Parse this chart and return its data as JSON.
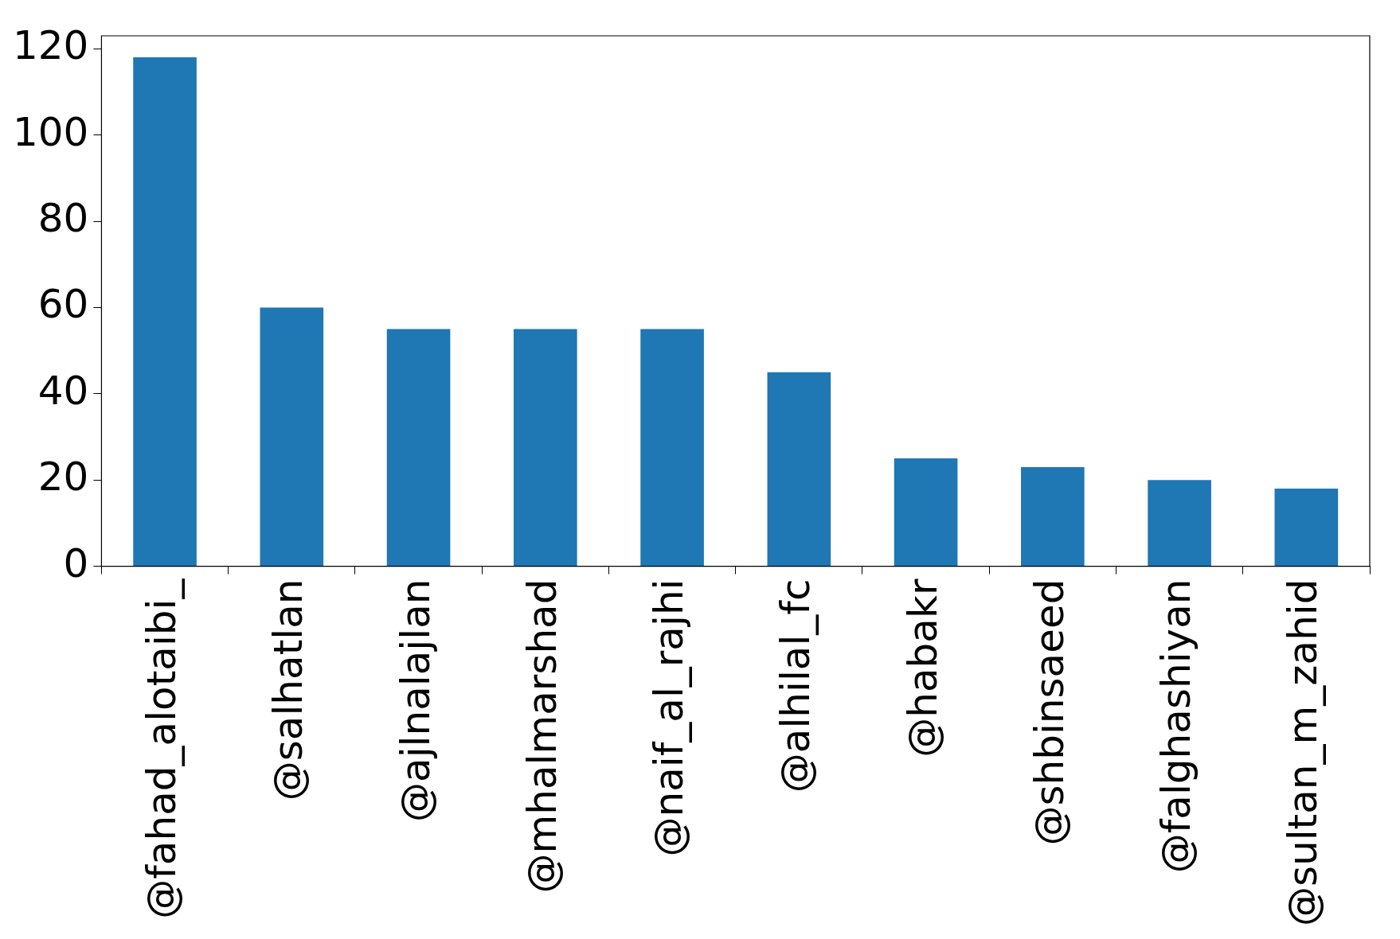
{
  "chart_data": {
    "type": "bar",
    "categories": [
      "@fahad_alotaibi_",
      "@salhatlan",
      "@ajlnalajlan",
      "@mhalmarshad",
      "@naif_al_rajhi",
      "@alhilal_fc",
      "@habakr",
      "@shbinsaeed",
      "@falghashiyan",
      "@sultan_m_zahid"
    ],
    "values": [
      118,
      60,
      55,
      55,
      55,
      45,
      25,
      23,
      20,
      18
    ],
    "color": "#1f77b4",
    "ylim": [
      0,
      123
    ],
    "yticks": [
      0,
      20,
      40,
      60,
      80,
      100,
      120
    ],
    "grid": false,
    "legend": false
  }
}
